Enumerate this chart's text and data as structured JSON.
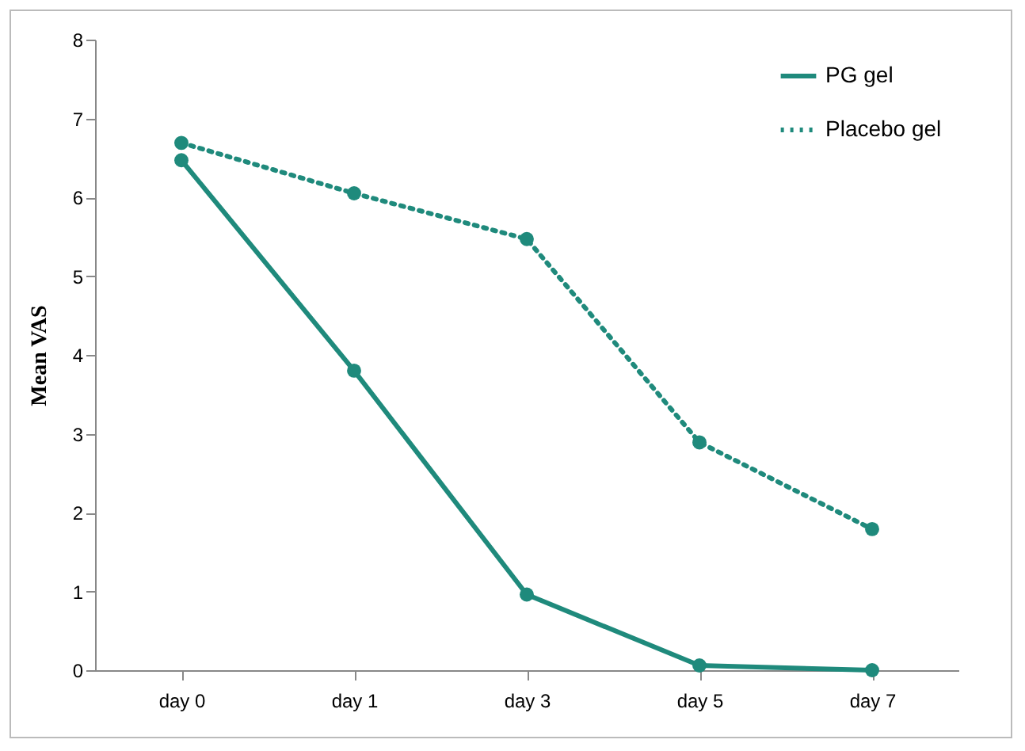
{
  "chart_data": {
    "type": "line",
    "ylabel": "Mean VAS",
    "categories": [
      "day 0",
      "day 1",
      "day 3",
      "day 5",
      "day 7"
    ],
    "series": [
      {
        "name": "PG gel",
        "color": "#1f8a7c",
        "line_style": "solid",
        "values": [
          6.47,
          3.8,
          0.96,
          0.06,
          0
        ]
      },
      {
        "name": "Placebo gel",
        "color": "#1f8a7c",
        "line_style": "dotted",
        "values": [
          6.69,
          6.05,
          5.47,
          2.89,
          1.79
        ]
      }
    ],
    "ylim": [
      0,
      8
    ],
    "yticks": [
      0,
      1,
      2,
      3,
      4,
      5,
      6,
      7,
      8
    ],
    "grid": false,
    "legend": "top right",
    "marker": "circle"
  }
}
